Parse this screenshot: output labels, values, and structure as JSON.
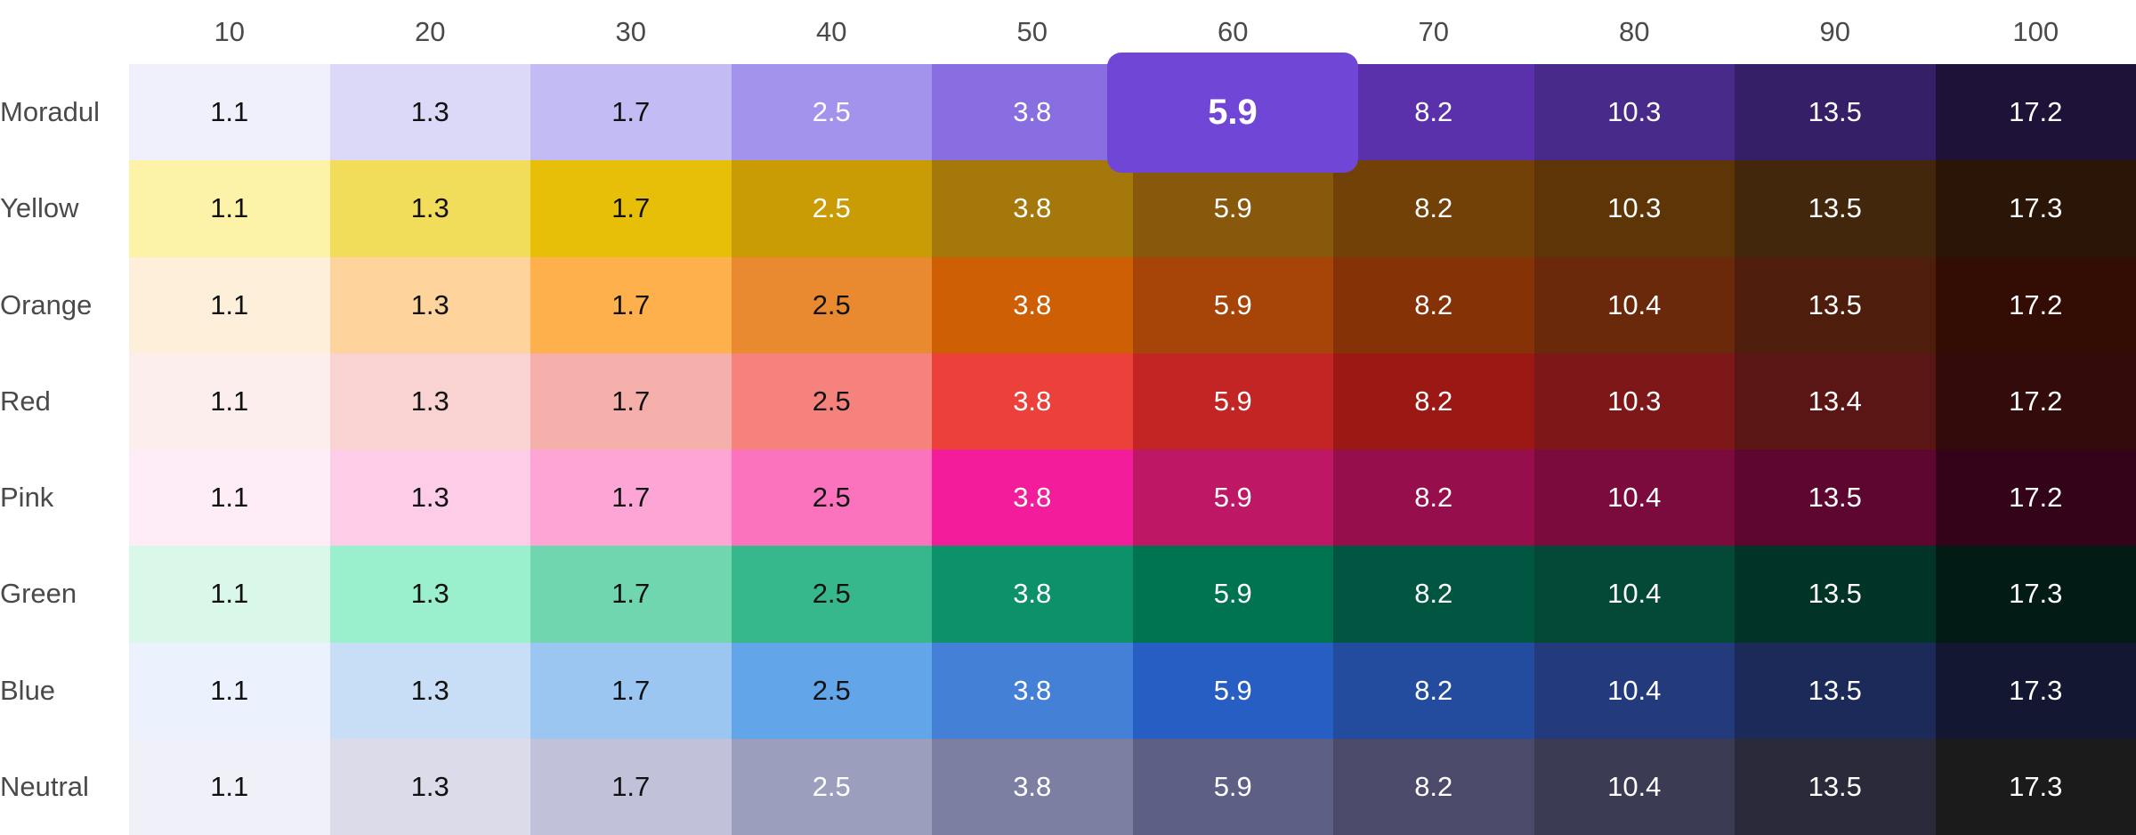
{
  "chart_data": {
    "type": "heatmap",
    "title": "",
    "xlabel": "",
    "ylabel": "",
    "columns": [
      "10",
      "20",
      "30",
      "40",
      "50",
      "60",
      "70",
      "80",
      "90",
      "100"
    ],
    "rows": [
      {
        "name": "Moradul",
        "values": [
          "1.1",
          "1.3",
          "1.7",
          "2.5",
          "3.8",
          "5.9",
          "8.2",
          "10.3",
          "13.5",
          "17.2"
        ],
        "colors": [
          "#f0f0fc",
          "#dcd8f8",
          "#c3bbf3",
          "#a393ec",
          "#896ee2",
          "#7046d6",
          "#5a31ab",
          "#472a8a",
          "#351f66",
          "#1e1238"
        ],
        "text_dark_until": 3
      },
      {
        "name": "Yellow",
        "values": [
          "1.1",
          "1.3",
          "1.7",
          "2.5",
          "3.8",
          "5.9",
          "8.2",
          "10.3",
          "13.5",
          "17.3"
        ],
        "colors": [
          "#fcf3a8",
          "#f2dd5a",
          "#e7bf08",
          "#c99c06",
          "#a4780b",
          "#88580c",
          "#724107",
          "#5e3506",
          "#43270d",
          "#2b1507"
        ],
        "text_dark_until": 3
      },
      {
        "name": "Orange",
        "values": [
          "1.1",
          "1.3",
          "1.7",
          "2.5",
          "3.8",
          "5.9",
          "8.2",
          "10.4",
          "13.5",
          "17.2"
        ],
        "colors": [
          "#feefdb",
          "#fed49c",
          "#feb04c",
          "#ea8a30",
          "#cf5f04",
          "#a64507",
          "#853206",
          "#6b290c",
          "#4f1d0b",
          "#330d03"
        ],
        "text_dark_until": 4
      },
      {
        "name": "Red",
        "values": [
          "1.1",
          "1.3",
          "1.7",
          "2.5",
          "3.8",
          "5.9",
          "8.2",
          "10.3",
          "13.4",
          "17.2"
        ],
        "colors": [
          "#fdeeee",
          "#f9d2d2",
          "#f5afab",
          "#f5827d",
          "#ec403b",
          "#c22524",
          "#9c1814",
          "#7e1818",
          "#591614",
          "#330b0b"
        ],
        "text_dark_until": 4
      },
      {
        "name": "Pink",
        "values": [
          "1.1",
          "1.3",
          "1.7",
          "2.5",
          "3.8",
          "5.9",
          "8.2",
          "10.4",
          "13.5",
          "17.2"
        ],
        "colors": [
          "#feedf6",
          "#fdcde8",
          "#fda6d6",
          "#fb72bd",
          "#f31c9a",
          "#be1766",
          "#970e4c",
          "#7b0a3d",
          "#5c0630",
          "#33031a"
        ],
        "text_dark_until": 4
      },
      {
        "name": "Green",
        "values": [
          "1.1",
          "1.3",
          "1.7",
          "2.5",
          "3.8",
          "5.9",
          "8.2",
          "10.4",
          "13.5",
          "17.3"
        ],
        "colors": [
          "#d9f8ea",
          "#9aefcc",
          "#70d6b0",
          "#37b88c",
          "#0c916a",
          "#007350",
          "#005640",
          "#044937",
          "#013327",
          "#021b14"
        ],
        "text_dark_until": 4
      },
      {
        "name": "Blue",
        "values": [
          "1.1",
          "1.3",
          "1.7",
          "2.5",
          "3.8",
          "5.9",
          "8.2",
          "10.4",
          "13.5",
          "17.3"
        ],
        "colors": [
          "#ebf2fd",
          "#c8def7",
          "#9bc6f1",
          "#62a5e8",
          "#4481d6",
          "#265ec4",
          "#244c9e",
          "#233b7c",
          "#1b2a59",
          "#131731"
        ],
        "text_dark_until": 4
      },
      {
        "name": "Neutral",
        "values": [
          "1.1",
          "1.3",
          "1.7",
          "2.5",
          "3.8",
          "5.9",
          "8.2",
          "10.4",
          "13.5",
          "17.3"
        ],
        "colors": [
          "#f0f0f8",
          "#dcdbe9",
          "#c1c1d9",
          "#9b9fbd",
          "#7c7ea2",
          "#5e5f85",
          "#4b4a6a",
          "#3b3b53",
          "#2a2a3a",
          "#1b1b1c"
        ],
        "text_dark_until": 3
      }
    ],
    "highlight": {
      "row": 0,
      "column": 5,
      "value": "5.9",
      "color": "#7046d6"
    },
    "grid": false,
    "legend": "none"
  }
}
